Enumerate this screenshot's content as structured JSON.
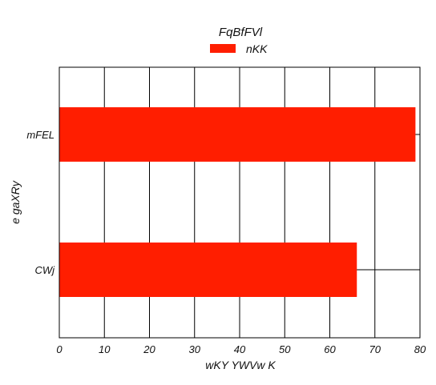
{
  "chart_data": {
    "type": "bar",
    "orientation": "horizontal",
    "title": "FqBfFVl",
    "xlabel": "wKY YWVw K",
    "ylabel": "e gaXRy",
    "categories": [
      "mFEL",
      "CWj"
    ],
    "series": [
      {
        "name": "nKK",
        "values": [
          79,
          66
        ],
        "color": "#ff1e00"
      }
    ],
    "xlim": [
      0,
      80
    ],
    "xticks": [
      0,
      10,
      20,
      30,
      40,
      50,
      60,
      70,
      80
    ],
    "grid": true,
    "legend_position": "top-center"
  }
}
